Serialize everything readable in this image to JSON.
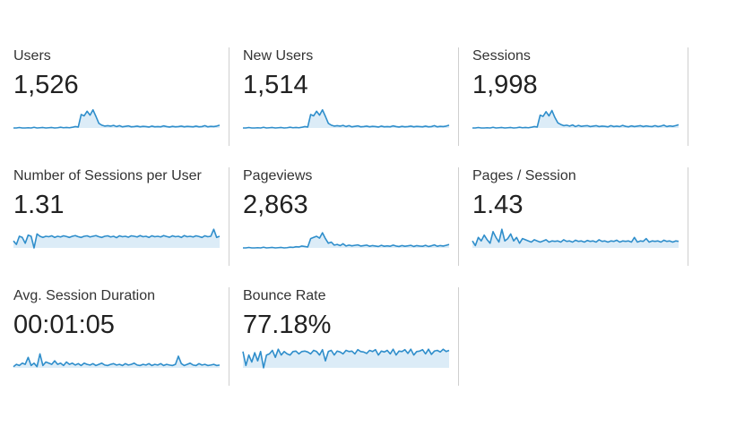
{
  "metrics": [
    {
      "label": "Users",
      "value": "1,526",
      "series": [
        0,
        0,
        0.02,
        0,
        0,
        0.01,
        0,
        0.03,
        0,
        0.01,
        0.02,
        0,
        0.01,
        0.02,
        0,
        0.01,
        0.03,
        0.01,
        0.02,
        0.01,
        0.03,
        0.06,
        0.04,
        0.58,
        0.52,
        0.72,
        0.55,
        0.78,
        0.5,
        0.2,
        0.12,
        0.08,
        0.1,
        0.08,
        0.11,
        0.06,
        0.1,
        0.05,
        0.07,
        0.09,
        0.05,
        0.06,
        0.08,
        0.05,
        0.07,
        0.06,
        0.04,
        0.08,
        0.05,
        0.06,
        0.05,
        0.09,
        0.06,
        0.04,
        0.07,
        0.05,
        0.06,
        0.08,
        0.05,
        0.07,
        0.06,
        0.05,
        0.08,
        0.05,
        0.06,
        0.1,
        0.05,
        0.07,
        0.06,
        0.08,
        0.12
      ]
    },
    {
      "label": "New Users",
      "value": "1,514",
      "series": [
        0,
        0,
        0.02,
        0,
        0,
        0.01,
        0,
        0.03,
        0,
        0.01,
        0.02,
        0,
        0.01,
        0.02,
        0,
        0.01,
        0.03,
        0.01,
        0.02,
        0.01,
        0.03,
        0.06,
        0.04,
        0.58,
        0.52,
        0.72,
        0.55,
        0.78,
        0.5,
        0.2,
        0.12,
        0.08,
        0.1,
        0.08,
        0.11,
        0.06,
        0.1,
        0.05,
        0.07,
        0.09,
        0.05,
        0.06,
        0.08,
        0.05,
        0.07,
        0.06,
        0.04,
        0.08,
        0.05,
        0.06,
        0.05,
        0.09,
        0.06,
        0.04,
        0.07,
        0.05,
        0.06,
        0.08,
        0.05,
        0.07,
        0.06,
        0.05,
        0.08,
        0.05,
        0.06,
        0.1,
        0.05,
        0.07,
        0.06,
        0.08,
        0.12
      ]
    },
    {
      "label": "Sessions",
      "value": "1,998",
      "series": [
        0,
        0,
        0.02,
        0,
        0,
        0.01,
        0,
        0.03,
        0,
        0.01,
        0.02,
        0,
        0.01,
        0.02,
        0,
        0.01,
        0.03,
        0.01,
        0.02,
        0.01,
        0.03,
        0.06,
        0.04,
        0.55,
        0.5,
        0.7,
        0.52,
        0.75,
        0.45,
        0.22,
        0.15,
        0.1,
        0.12,
        0.08,
        0.13,
        0.06,
        0.11,
        0.07,
        0.09,
        0.1,
        0.06,
        0.08,
        0.1,
        0.06,
        0.08,
        0.07,
        0.05,
        0.1,
        0.06,
        0.08,
        0.06,
        0.11,
        0.07,
        0.05,
        0.09,
        0.06,
        0.08,
        0.1,
        0.06,
        0.09,
        0.07,
        0.06,
        0.1,
        0.06,
        0.08,
        0.12,
        0.06,
        0.09,
        0.07,
        0.1,
        0.14
      ]
    },
    {
      "label": "Number of Sessions per User",
      "value": "1.31",
      "series": [
        0.3,
        0.15,
        0.5,
        0.45,
        0.2,
        0.55,
        0.5,
        0,
        0.6,
        0.5,
        0.45,
        0.5,
        0.48,
        0.52,
        0.45,
        0.5,
        0.47,
        0.52,
        0.49,
        0.45,
        0.5,
        0.53,
        0.48,
        0.45,
        0.5,
        0.52,
        0.47,
        0.5,
        0.53,
        0.48,
        0.45,
        0.5,
        0.52,
        0.47,
        0.5,
        0.44,
        0.52,
        0.48,
        0.5,
        0.46,
        0.52,
        0.5,
        0.47,
        0.53,
        0.48,
        0.5,
        0.45,
        0.52,
        0.48,
        0.5,
        0.47,
        0.53,
        0.49,
        0.46,
        0.52,
        0.48,
        0.5,
        0.45,
        0.53,
        0.48,
        0.5,
        0.47,
        0.52,
        0.49,
        0.45,
        0.52,
        0.48,
        0.5,
        0.8,
        0.45,
        0.5
      ]
    },
    {
      "label": "Pageviews",
      "value": "2,863",
      "series": [
        0,
        0,
        0.02,
        0,
        0,
        0.01,
        0,
        0.03,
        0,
        0.01,
        0.02,
        0,
        0.01,
        0.02,
        0,
        0.01,
        0.03,
        0.02,
        0.05,
        0.04,
        0.08,
        0.06,
        0.04,
        0.4,
        0.45,
        0.5,
        0.42,
        0.65,
        0.4,
        0.2,
        0.25,
        0.12,
        0.15,
        0.1,
        0.18,
        0.08,
        0.12,
        0.09,
        0.11,
        0.13,
        0.08,
        0.1,
        0.12,
        0.07,
        0.1,
        0.08,
        0.06,
        0.11,
        0.07,
        0.09,
        0.07,
        0.12,
        0.08,
        0.06,
        0.1,
        0.07,
        0.09,
        0.11,
        0.06,
        0.1,
        0.08,
        0.07,
        0.11,
        0.06,
        0.09,
        0.13,
        0.07,
        0.1,
        0.08,
        0.11,
        0.15
      ]
    },
    {
      "label": "Pages / Session",
      "value": "1.43",
      "series": [
        0.3,
        0.1,
        0.45,
        0.3,
        0.55,
        0.35,
        0.2,
        0.7,
        0.45,
        0.25,
        0.8,
        0.3,
        0.4,
        0.6,
        0.3,
        0.45,
        0.2,
        0.4,
        0.35,
        0.3,
        0.25,
        0.35,
        0.3,
        0.25,
        0.3,
        0.35,
        0.25,
        0.3,
        0.28,
        0.3,
        0.25,
        0.35,
        0.28,
        0.3,
        0.25,
        0.33,
        0.28,
        0.3,
        0.25,
        0.32,
        0.28,
        0.3,
        0.25,
        0.35,
        0.28,
        0.3,
        0.25,
        0.3,
        0.28,
        0.33,
        0.25,
        0.3,
        0.28,
        0.3,
        0.25,
        0.45,
        0.25,
        0.3,
        0.28,
        0.4,
        0.25,
        0.3,
        0.28,
        0.3,
        0.25,
        0.33,
        0.28,
        0.3,
        0.25,
        0.3,
        0.28
      ]
    },
    {
      "label": "Avg. Session Duration",
      "value": "00:01:05",
      "series": [
        0.05,
        0.15,
        0.1,
        0.2,
        0.15,
        0.45,
        0.1,
        0.2,
        0.05,
        0.6,
        0.1,
        0.25,
        0.2,
        0.15,
        0.3,
        0.15,
        0.2,
        0.1,
        0.25,
        0.15,
        0.2,
        0.12,
        0.18,
        0.1,
        0.2,
        0.15,
        0.12,
        0.18,
        0.1,
        0.15,
        0.2,
        0.12,
        0.1,
        0.15,
        0.18,
        0.12,
        0.15,
        0.1,
        0.18,
        0.12,
        0.15,
        0.2,
        0.12,
        0.1,
        0.15,
        0.12,
        0.18,
        0.1,
        0.15,
        0.12,
        0.18,
        0.1,
        0.15,
        0.12,
        0.1,
        0.15,
        0.5,
        0.18,
        0.1,
        0.15,
        0.2,
        0.12,
        0.1,
        0.18,
        0.12,
        0.15,
        0.1,
        0.12,
        0.15,
        0.1,
        0.12
      ]
    },
    {
      "label": "Bounce Rate",
      "value": "77.18%",
      "series": [
        0.7,
        0.1,
        0.55,
        0.25,
        0.65,
        0.3,
        0.7,
        0.0,
        0.55,
        0.6,
        0.75,
        0.45,
        0.8,
        0.55,
        0.7,
        0.6,
        0.55,
        0.7,
        0.72,
        0.6,
        0.7,
        0.72,
        0.68,
        0.6,
        0.75,
        0.7,
        0.55,
        0.78,
        0.3,
        0.7,
        0.75,
        0.55,
        0.72,
        0.68,
        0.6,
        0.75,
        0.7,
        0.72,
        0.6,
        0.78,
        0.7,
        0.68,
        0.62,
        0.75,
        0.7,
        0.78,
        0.55,
        0.72,
        0.68,
        0.75,
        0.6,
        0.8,
        0.55,
        0.72,
        0.7,
        0.78,
        0.62,
        0.8,
        0.55,
        0.7,
        0.72,
        0.78,
        0.6,
        0.8,
        0.58,
        0.72,
        0.75,
        0.68,
        0.8,
        0.7,
        0.75
      ]
    }
  ],
  "colors": {
    "line": "#2f8ecb",
    "fill": "#dcecf7",
    "divider": "#cfcfcf",
    "label": "#333333",
    "value": "#212121"
  }
}
